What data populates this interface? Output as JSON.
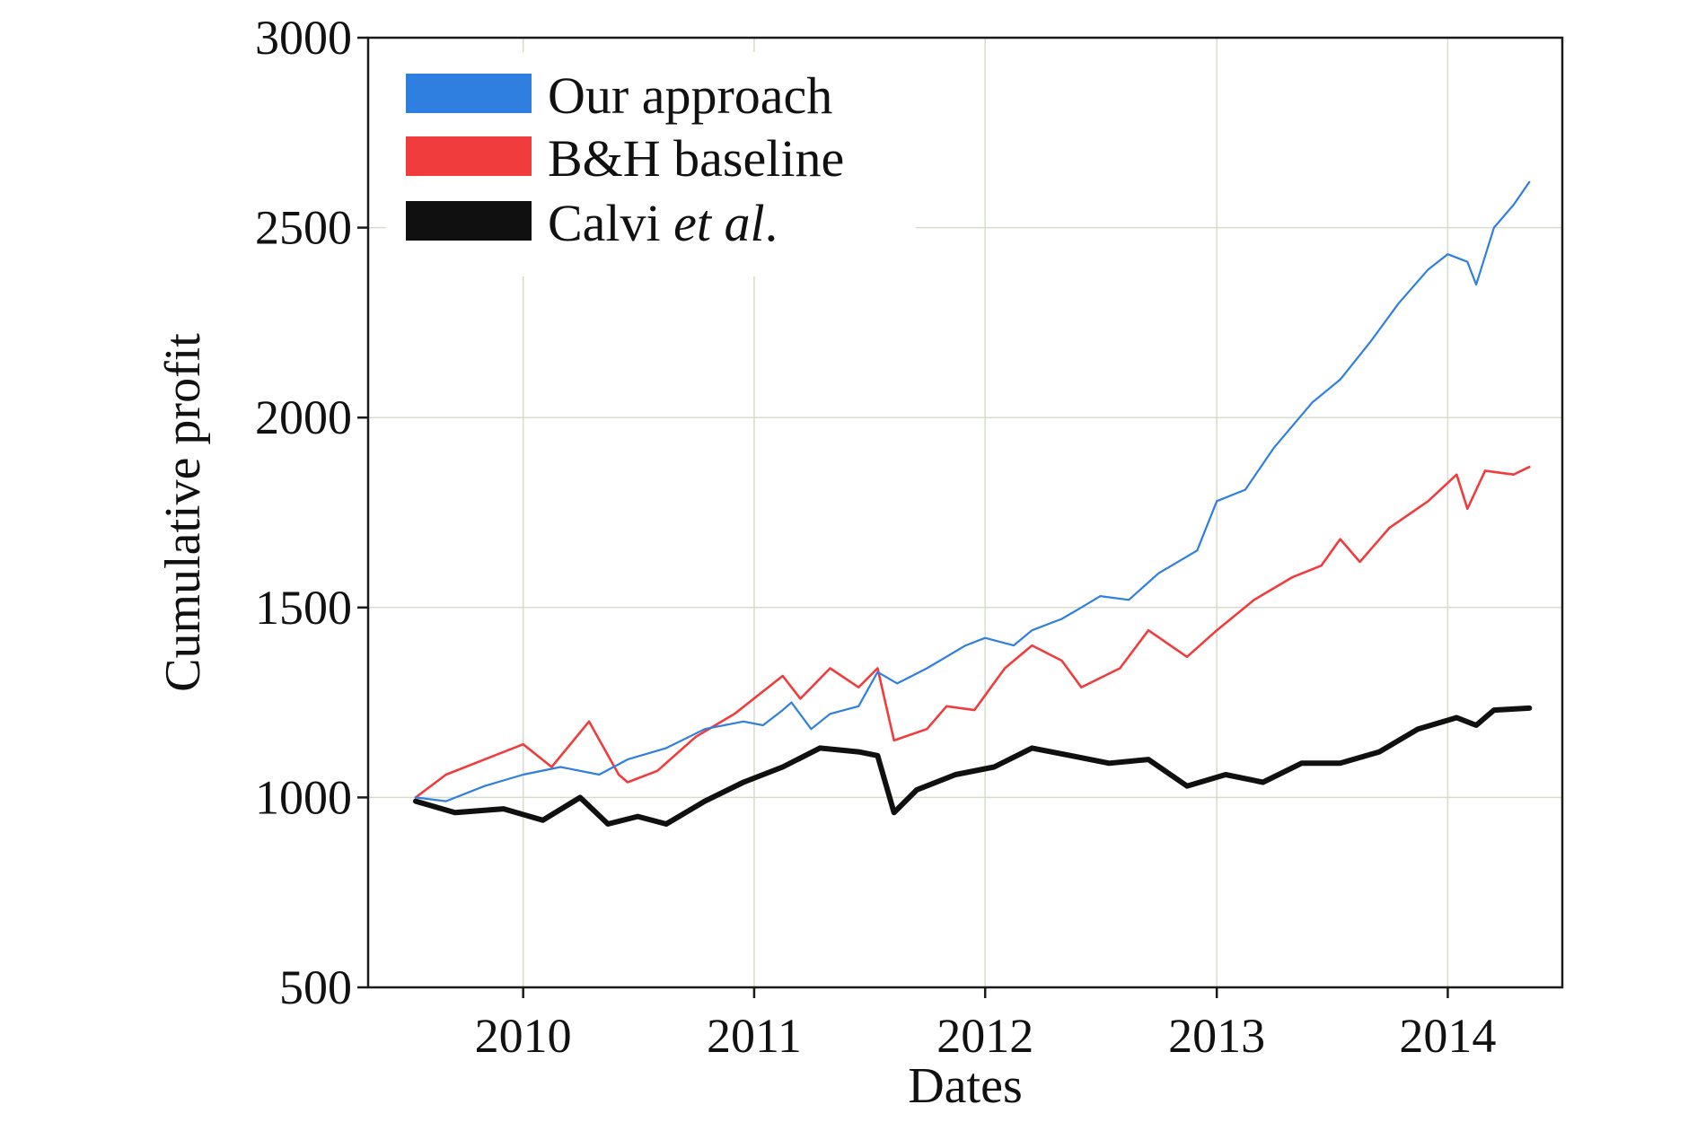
{
  "chart_data": {
    "type": "line",
    "title": "",
    "xlabel": "Dates",
    "ylabel": "Cumulative profit",
    "xlim": [
      "2009-05-01",
      "2014-07-01"
    ],
    "ylim": [
      500,
      3000
    ],
    "x_ticks": [
      "2010",
      "2011",
      "2012",
      "2013",
      "2014"
    ],
    "y_ticks": [
      "500",
      "1000",
      "1500",
      "2000",
      "2500",
      "3000"
    ],
    "grid": true,
    "legend_position": "top-left",
    "legend": [
      {
        "series": "Our approach",
        "text": "Our approach",
        "italic_suffix": ""
      },
      {
        "series": "B&H baseline",
        "text": "B&H baseline",
        "italic_suffix": ""
      },
      {
        "series": "Calvi et al.",
        "text": "Calvi ",
        "italic_suffix": "et al.",
        "suffix": "."
      }
    ],
    "series": [
      {
        "name": "Our approach",
        "color": "#2f7fe0",
        "points": [
          [
            "2009-07-15",
            1000
          ],
          [
            "2009-09-01",
            990
          ],
          [
            "2009-11-01",
            1030
          ],
          [
            "2010-01-01",
            1060
          ],
          [
            "2010-03-01",
            1080
          ],
          [
            "2010-05-01",
            1060
          ],
          [
            "2010-06-15",
            1100
          ],
          [
            "2010-08-15",
            1130
          ],
          [
            "2010-10-15",
            1180
          ],
          [
            "2010-12-15",
            1200
          ],
          [
            "2011-01-15",
            1190
          ],
          [
            "2011-02-15",
            1230
          ],
          [
            "2011-03-01",
            1250
          ],
          [
            "2011-04-01",
            1180
          ],
          [
            "2011-05-01",
            1220
          ],
          [
            "2011-06-15",
            1240
          ],
          [
            "2011-07-15",
            1330
          ],
          [
            "2011-08-15",
            1300
          ],
          [
            "2011-10-01",
            1340
          ],
          [
            "2011-12-01",
            1400
          ],
          [
            "2012-01-01",
            1420
          ],
          [
            "2012-02-15",
            1400
          ],
          [
            "2012-03-15",
            1440
          ],
          [
            "2012-05-01",
            1470
          ],
          [
            "2012-06-01",
            1500
          ],
          [
            "2012-07-01",
            1530
          ],
          [
            "2012-08-15",
            1520
          ],
          [
            "2012-10-01",
            1590
          ],
          [
            "2012-12-01",
            1650
          ],
          [
            "2013-01-01",
            1780
          ],
          [
            "2013-02-15",
            1810
          ],
          [
            "2013-04-01",
            1920
          ],
          [
            "2013-06-01",
            2040
          ],
          [
            "2013-07-15",
            2100
          ],
          [
            "2013-09-01",
            2200
          ],
          [
            "2013-10-15",
            2300
          ],
          [
            "2013-12-01",
            2390
          ],
          [
            "2014-01-01",
            2430
          ],
          [
            "2014-02-01",
            2410
          ],
          [
            "2014-02-15",
            2350
          ],
          [
            "2014-03-15",
            2500
          ],
          [
            "2014-04-15",
            2560
          ],
          [
            "2014-05-10",
            2620
          ]
        ]
      },
      {
        "name": "B&H baseline",
        "color": "#f03c3c",
        "points": [
          [
            "2009-07-15",
            1000
          ],
          [
            "2009-09-01",
            1060
          ],
          [
            "2009-11-01",
            1100
          ],
          [
            "2010-01-01",
            1140
          ],
          [
            "2010-02-15",
            1080
          ],
          [
            "2010-04-15",
            1200
          ],
          [
            "2010-06-01",
            1060
          ],
          [
            "2010-06-15",
            1040
          ],
          [
            "2010-08-01",
            1070
          ],
          [
            "2010-10-01",
            1160
          ],
          [
            "2010-12-01",
            1220
          ],
          [
            "2011-02-15",
            1320
          ],
          [
            "2011-03-15",
            1260
          ],
          [
            "2011-05-01",
            1340
          ],
          [
            "2011-06-15",
            1290
          ],
          [
            "2011-07-15",
            1340
          ],
          [
            "2011-08-10",
            1150
          ],
          [
            "2011-10-01",
            1180
          ],
          [
            "2011-11-01",
            1240
          ],
          [
            "2011-12-15",
            1230
          ],
          [
            "2012-02-01",
            1340
          ],
          [
            "2012-03-15",
            1400
          ],
          [
            "2012-05-01",
            1360
          ],
          [
            "2012-06-01",
            1290
          ],
          [
            "2012-08-01",
            1340
          ],
          [
            "2012-09-15",
            1440
          ],
          [
            "2012-11-15",
            1370
          ],
          [
            "2013-01-01",
            1440
          ],
          [
            "2013-03-01",
            1520
          ],
          [
            "2013-05-01",
            1580
          ],
          [
            "2013-06-15",
            1610
          ],
          [
            "2013-07-15",
            1680
          ],
          [
            "2013-08-15",
            1620
          ],
          [
            "2013-10-01",
            1710
          ],
          [
            "2013-12-01",
            1780
          ],
          [
            "2014-01-15",
            1850
          ],
          [
            "2014-02-01",
            1760
          ],
          [
            "2014-03-01",
            1860
          ],
          [
            "2014-04-15",
            1850
          ],
          [
            "2014-05-10",
            1870
          ]
        ]
      },
      {
        "name": "Calvi et al.",
        "color": "#101010",
        "points": [
          [
            "2009-07-15",
            990
          ],
          [
            "2009-09-15",
            960
          ],
          [
            "2009-12-01",
            970
          ],
          [
            "2010-02-01",
            940
          ],
          [
            "2010-04-01",
            1000
          ],
          [
            "2010-05-15",
            930
          ],
          [
            "2010-07-01",
            950
          ],
          [
            "2010-08-15",
            930
          ],
          [
            "2010-10-15",
            990
          ],
          [
            "2010-12-15",
            1040
          ],
          [
            "2011-02-15",
            1080
          ],
          [
            "2011-04-15",
            1130
          ],
          [
            "2011-06-15",
            1120
          ],
          [
            "2011-07-15",
            1110
          ],
          [
            "2011-08-10",
            960
          ],
          [
            "2011-09-15",
            1020
          ],
          [
            "2011-11-15",
            1060
          ],
          [
            "2012-01-15",
            1080
          ],
          [
            "2012-03-15",
            1130
          ],
          [
            "2012-05-15",
            1110
          ],
          [
            "2012-07-15",
            1090
          ],
          [
            "2012-09-15",
            1100
          ],
          [
            "2012-11-15",
            1030
          ],
          [
            "2013-01-15",
            1060
          ],
          [
            "2013-03-15",
            1040
          ],
          [
            "2013-05-15",
            1090
          ],
          [
            "2013-07-15",
            1090
          ],
          [
            "2013-09-15",
            1120
          ],
          [
            "2013-11-15",
            1180
          ],
          [
            "2014-01-15",
            1210
          ],
          [
            "2014-02-15",
            1190
          ],
          [
            "2014-03-15",
            1230
          ],
          [
            "2014-05-10",
            1235
          ]
        ]
      }
    ]
  }
}
